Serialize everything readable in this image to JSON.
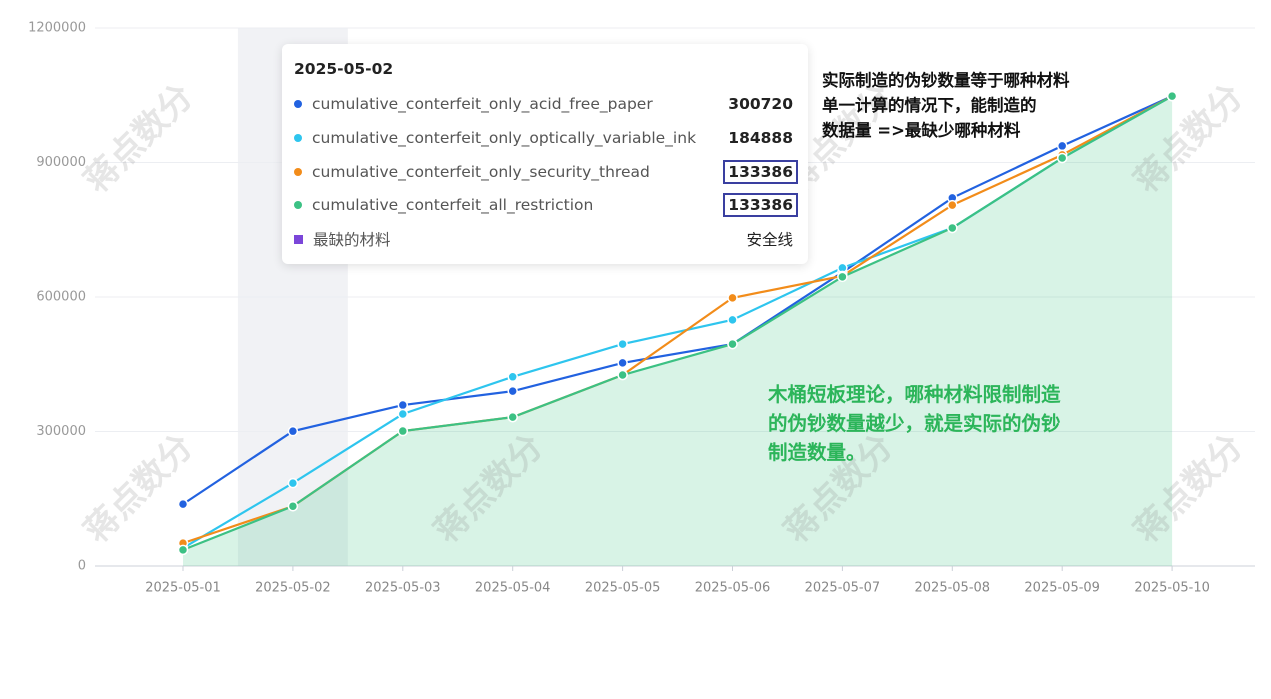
{
  "chart_data": {
    "type": "line",
    "categories": [
      "2025-05-01",
      "2025-05-02",
      "2025-05-03",
      "2025-05-04",
      "2025-05-05",
      "2025-05-06",
      "2025-05-07",
      "2025-05-08",
      "2025-05-09",
      "2025-05-10"
    ],
    "series": [
      {
        "name": "cumulative_conterfeit_only_acid_free_paper",
        "color": "#2262e0",
        "values": [
          138000,
          300720,
          359000,
          390000,
          453000,
          495000,
          655000,
          821000,
          937000,
          1048000
        ]
      },
      {
        "name": "cumulative_conterfeit_only_optically_variable_ink",
        "color": "#2ec5ee",
        "values": [
          40000,
          184888,
          339000,
          422000,
          495000,
          549000,
          665000,
          754000,
          910000,
          1048000
        ]
      },
      {
        "name": "cumulative_conterfeit_only_security_thread",
        "color": "#f28c1a",
        "values": [
          51000,
          133386,
          301000,
          332000,
          426000,
          598000,
          647000,
          805000,
          917000,
          1048000
        ]
      },
      {
        "name": "cumulative_conterfeit_all_restriction",
        "color": "#3cc184",
        "values": [
          36000,
          133386,
          301000,
          332000,
          426000,
          495000,
          645000,
          754000,
          910000,
          1048000
        ],
        "area": true
      }
    ],
    "ylim": [
      0,
      1200000
    ],
    "yticks": [
      0,
      300000,
      600000,
      900000,
      1200000
    ],
    "grid": true,
    "tooltip": {
      "index": 1,
      "extra_name": "最缺的材料",
      "extra_value": "安全线",
      "extra_color": "#7b46d9",
      "boxed": [
        2,
        3
      ]
    },
    "annotations": [
      {
        "lines": [
          "实际制造的伪钞数量等于哪种材料",
          "单一计算的情况下，能制造的",
          "数据量 =>最缺少哪种材料"
        ]
      },
      {
        "lines": [
          "木桶短板理论，哪种材料限制制造",
          "的伪钞数量越少，就是实际的伪钞",
          "制造数量。"
        ]
      }
    ],
    "watermark": "蒋点数分"
  }
}
